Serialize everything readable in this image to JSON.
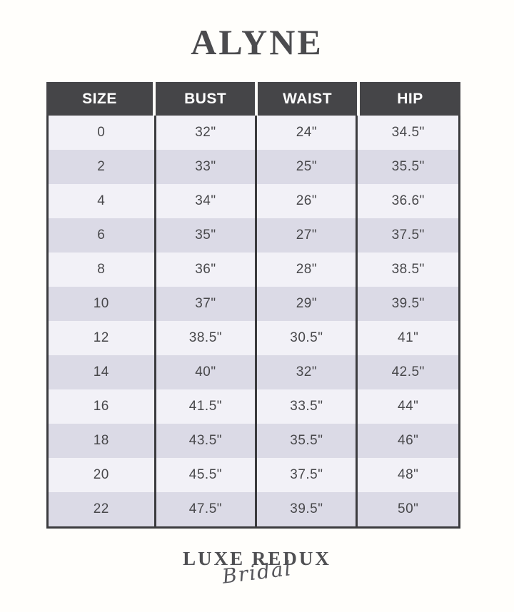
{
  "title": "ALYNE",
  "chart_data": {
    "type": "table",
    "title": "ALYNE",
    "columns": [
      "SIZE",
      "BUST",
      "WAIST",
      "HIP"
    ],
    "rows": [
      [
        "0",
        "32\"",
        "24\"",
        "34.5\""
      ],
      [
        "2",
        "33\"",
        "25\"",
        "35.5\""
      ],
      [
        "4",
        "34\"",
        "26\"",
        "36.6\""
      ],
      [
        "6",
        "35\"",
        "27\"",
        "37.5\""
      ],
      [
        "8",
        "36\"",
        "28\"",
        "38.5\""
      ],
      [
        "10",
        "37\"",
        "29\"",
        "39.5\""
      ],
      [
        "12",
        "38.5\"",
        "30.5\"",
        "41\""
      ],
      [
        "14",
        "40\"",
        "32\"",
        "42.5\""
      ],
      [
        "16",
        "41.5\"",
        "33.5\"",
        "44\""
      ],
      [
        "18",
        "43.5\"",
        "35.5\"",
        "46\""
      ],
      [
        "20",
        "45.5\"",
        "37.5\"",
        "48\""
      ],
      [
        "22",
        "47.5\"",
        "39.5\"",
        "50\""
      ]
    ],
    "layout_hints": {
      "header_style": "dark band with white gaps between cells",
      "row_striping": "alternating light/dark lavender, no horizontal rules",
      "column_separators": "dark vertical borders in body"
    }
  },
  "footer": {
    "brand_line1": "LUXE REDUX",
    "brand_line2": "Bridal"
  },
  "colors": {
    "page_bg": "#fffefb",
    "header_bg": "#454548",
    "header_text": "#ffffff",
    "row_light": "#f2f1f7",
    "row_dark": "#dbdae6",
    "border": "#3b3b3e",
    "cell_text": "#48484b",
    "title_color": "#4b4b4e",
    "logo_color": "#4f4f52"
  }
}
